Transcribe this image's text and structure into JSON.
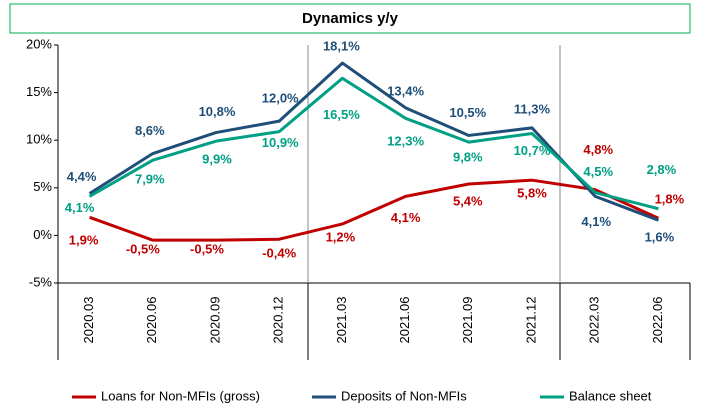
{
  "chart_data": {
    "type": "line",
    "title": "Dynamics y/y",
    "categories": [
      "2020.03",
      "2020.06",
      "2020.09",
      "2020.12",
      "2021.03",
      "2021.06",
      "2021.09",
      "2021.12",
      "2022.03",
      "2022.06"
    ],
    "series": [
      {
        "name": "Loans for Non-MFIs (gross)",
        "color": "#c00000",
        "values": [
          1.9,
          -0.5,
          -0.5,
          -0.4,
          1.2,
          4.1,
          5.4,
          5.8,
          4.8,
          1.8
        ],
        "value_labels": [
          "1,9%",
          "-0,5%",
          "-0,5%",
          "-0,4%",
          "1,2%",
          "4,1%",
          "5,4%",
          "5,8%",
          "4,8%",
          "1,8%"
        ]
      },
      {
        "name": "Deposits of Non-MFIs",
        "color": "#1f4e79",
        "values": [
          4.4,
          8.6,
          10.8,
          12.0,
          18.1,
          13.4,
          10.5,
          11.3,
          4.1,
          1.6
        ],
        "value_labels": [
          "4,4%",
          "8,6%",
          "10,8%",
          "12,0%",
          "18,1%",
          "13,4%",
          "10,5%",
          "11,3%",
          "4,1%",
          "1,6%"
        ]
      },
      {
        "name": "Balance sheet",
        "color": "#00a084",
        "values": [
          4.1,
          7.9,
          9.9,
          10.9,
          16.5,
          12.3,
          9.8,
          10.7,
          4.5,
          2.8
        ],
        "value_labels": [
          "4,1%",
          "7,9%",
          "9,9%",
          "10,9%",
          "16,5%",
          "12,3%",
          "9,8%",
          "10,7%",
          "4,5%",
          "2,8%"
        ]
      }
    ],
    "ylim": [
      -5,
      20
    ],
    "yticks": [
      {
        "value": -5,
        "label": "-5%"
      },
      {
        "value": 0,
        "label": "0%"
      },
      {
        "value": 5,
        "label": "5%"
      },
      {
        "value": 10,
        "label": "10%"
      },
      {
        "value": 15,
        "label": "15%"
      },
      {
        "value": 20,
        "label": "20%"
      }
    ],
    "legend": "bottom"
  }
}
